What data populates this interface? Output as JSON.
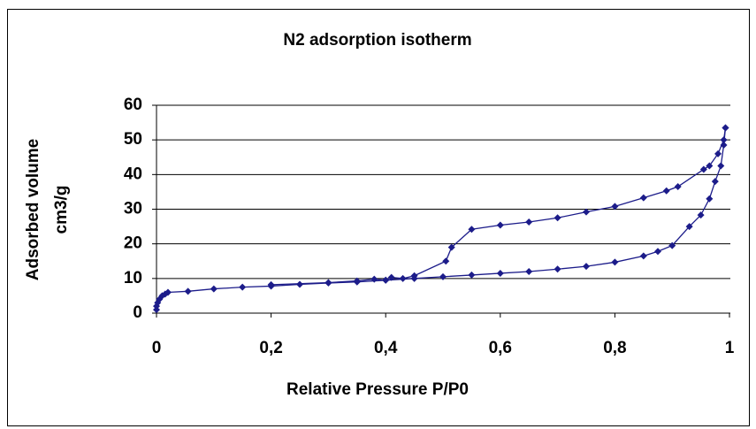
{
  "chart_data": {
    "type": "scatter-line",
    "title": "N2 adsorption isotherm",
    "ylabel": [
      "Adsorbed volume",
      "cm3/g"
    ],
    "xlabel": "Relative Pressure P/P0",
    "xlim": [
      0,
      1
    ],
    "ylim": [
      0,
      60
    ],
    "xticks": [
      0,
      {
        "value": 0.2,
        "label": "0,2"
      },
      {
        "value": 0.4,
        "label": "0,4"
      },
      {
        "value": 0.6,
        "label": "0,6"
      },
      {
        "value": 0.8,
        "label": "0,8"
      },
      1
    ],
    "yticks": [
      0,
      10,
      20,
      30,
      40,
      50,
      60
    ],
    "grid": true,
    "series": [
      {
        "color": "#1c1c8a",
        "x": [
          0,
          0,
          0.002,
          0.005,
          0.01,
          0.015,
          0.02,
          0.055,
          0.1,
          0.15,
          0.2,
          0.25,
          0.3,
          0.35,
          0.4,
          0.45,
          0.5,
          0.55,
          0.6,
          0.65,
          0.7,
          0.75,
          0.8,
          0.85,
          0.875,
          0.9,
          0.93,
          0.95,
          0.965,
          0.975,
          0.985,
          0.99,
          0.993
        ],
        "values": [
          1,
          2,
          3,
          4,
          5,
          5.5,
          6,
          6.3,
          7,
          7.5,
          7.8,
          8.3,
          8.7,
          9,
          9.5,
          10,
          10.5,
          11,
          11.5,
          12,
          12.7,
          13.5,
          14.7,
          16.5,
          17.8,
          19.5,
          25,
          28.3,
          33,
          38,
          42.5,
          48.5,
          53.5
        ]
      },
      {
        "color": "#1c1c8a",
        "x": [
          0.993,
          0.99,
          0.98,
          0.965,
          0.955,
          0.91,
          0.89,
          0.85,
          0.8,
          0.75,
          0.7,
          0.65,
          0.6,
          0.55,
          0.515,
          0.505,
          0.45,
          0.43,
          0.41,
          0.4,
          0.38,
          0.35,
          0.3,
          0.2
        ],
        "values": [
          53.5,
          50,
          46,
          42.5,
          41.5,
          36.5,
          35.3,
          33.3,
          30.8,
          29.2,
          27.5,
          26.3,
          25.4,
          24.2,
          19,
          15,
          10.8,
          10,
          10.3,
          9.5,
          9.8,
          9.3,
          8.8,
          8.2
        ]
      }
    ]
  }
}
